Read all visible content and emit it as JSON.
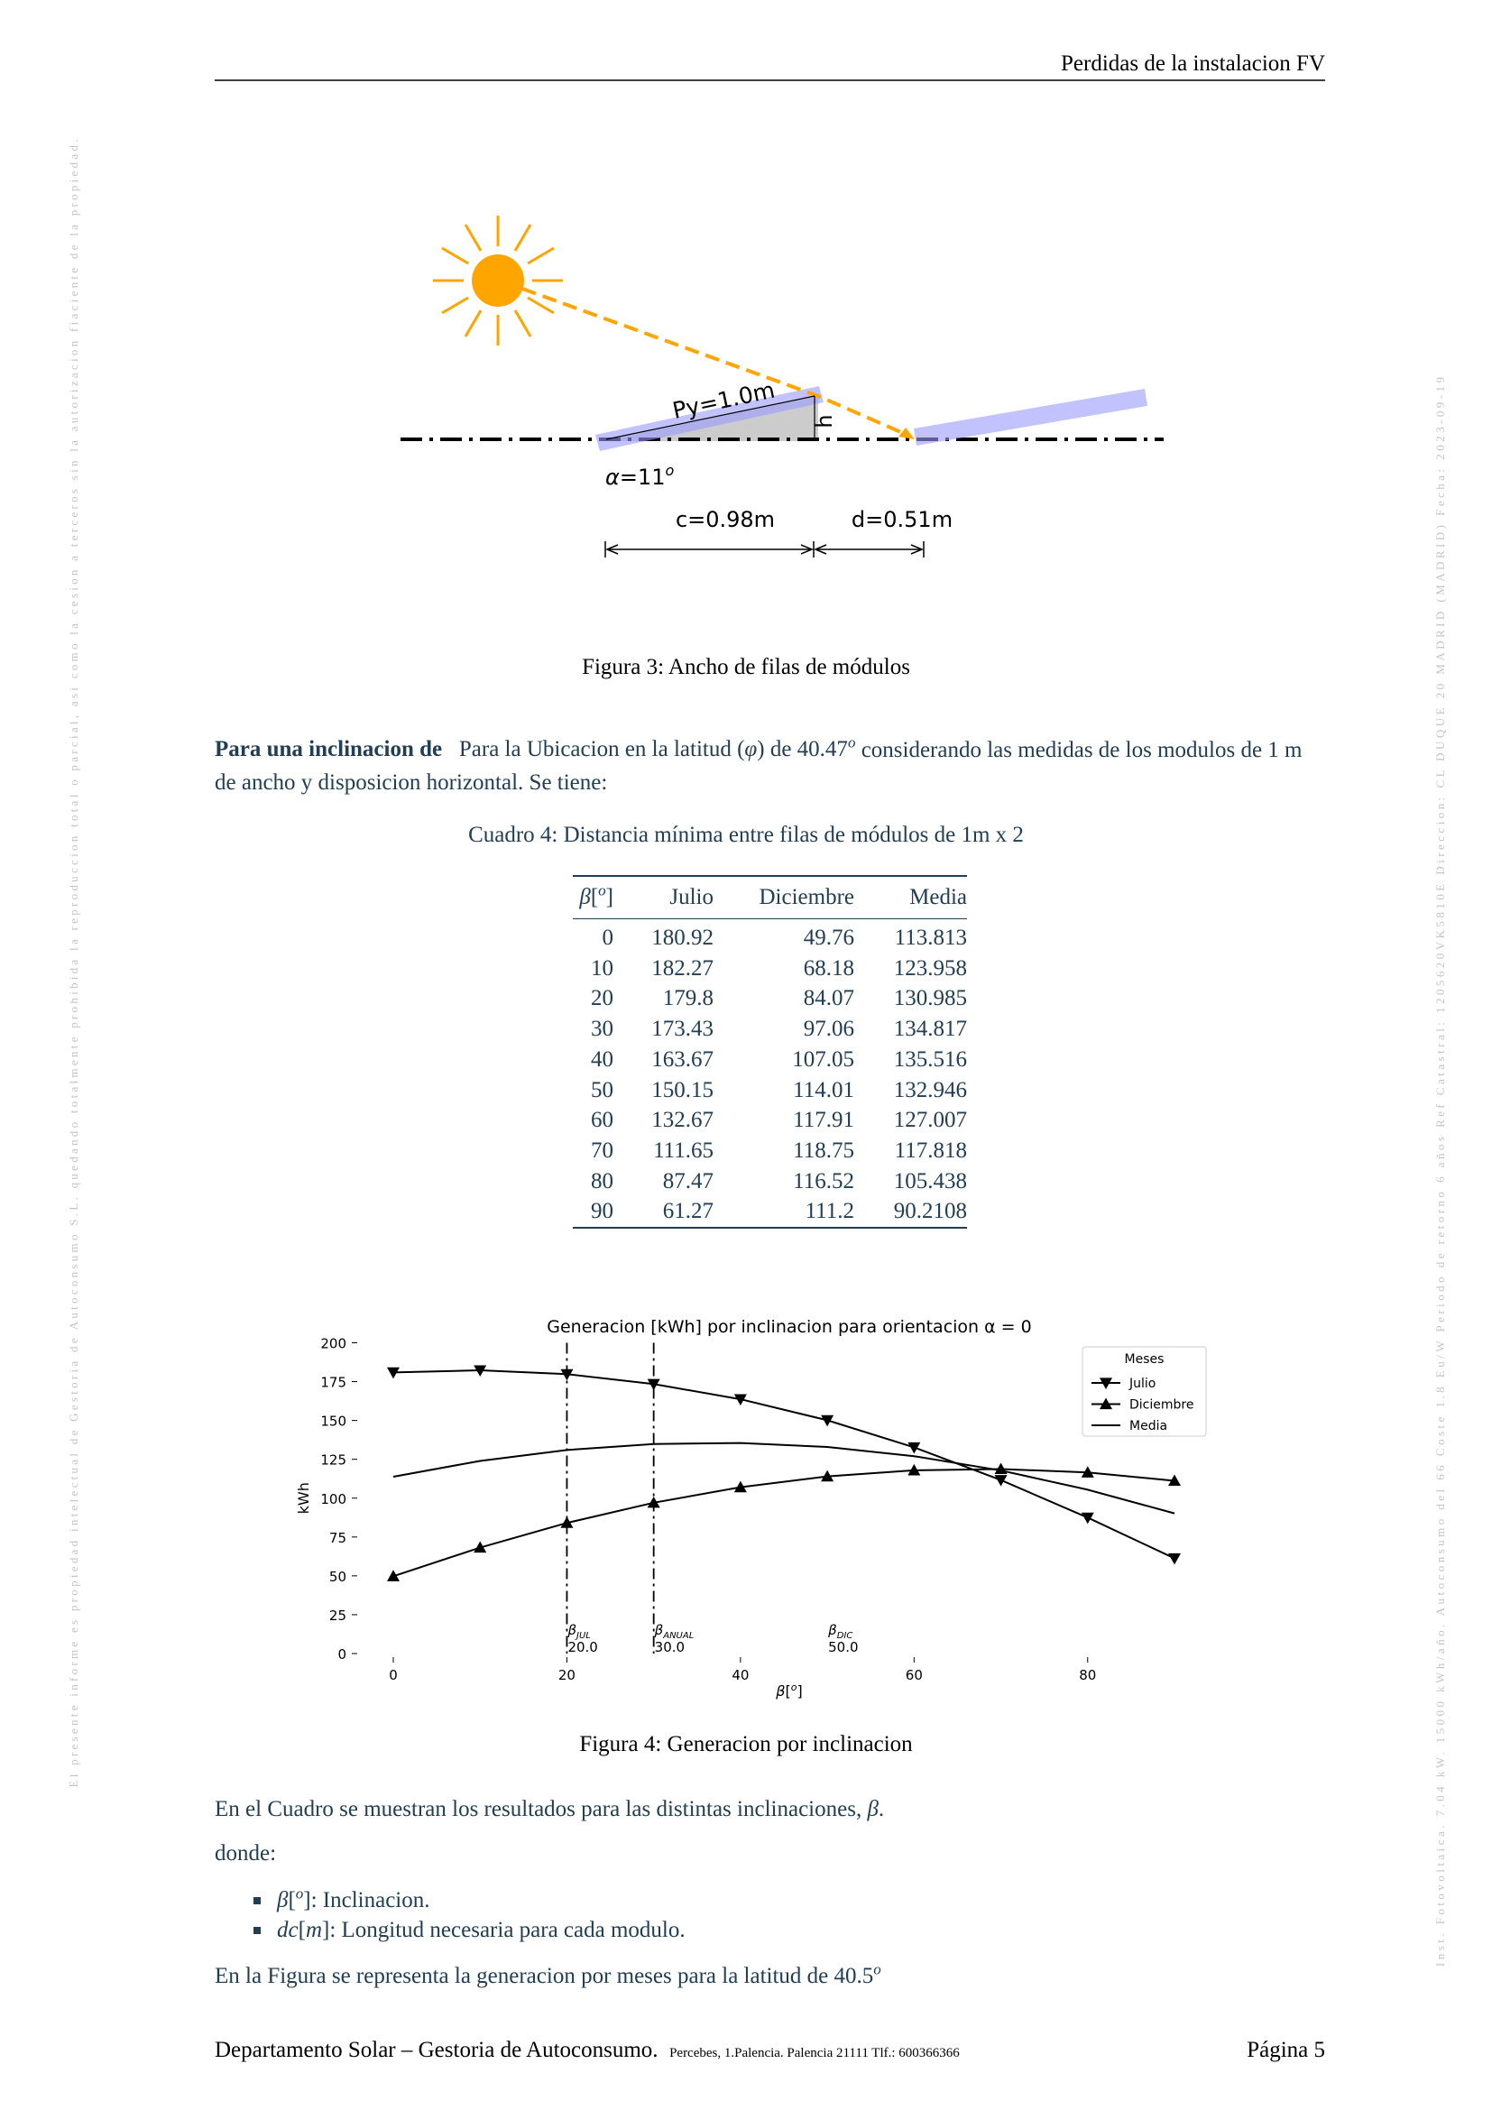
{
  "header": {
    "title": "Perdidas de la instalacion FV"
  },
  "watermark": {
    "left": "El presente informe es propiedad intelectual de Gestoria de Autoconsumo S.L. quedando totalmente prohibida la reproduccion total o parcial, asi como la cesion a terceros sin la autorizacion fiaciente de la propiedad.",
    "right": "Inst. Fotovoltaica. 7.04 kW. 15000 kWh/año. Autoconsumo del 66 Coste 1.8 Eu/W Periodo de retorno 6 años Ref Catastral: 1205620VK5810E Direccion: CL DUQUE 20 MADRID (MADRID) Fecha: 2023-09-19"
  },
  "figure3": {
    "labels": {
      "py": "Py=1.0m",
      "h": "h",
      "alpha": "α",
      "alpha_value": "=11",
      "alpha_unit": "o",
      "c": "c=0.98m",
      "d": "d=0.51m"
    },
    "caption": "Figura 3: Ancho de filas de módulos"
  },
  "paragraph": {
    "lead": "Para una inclinacion de",
    "t1": "Para la Ubicacion en la latitud (",
    "phi": "φ",
    "t2": ") de 40.47",
    "sup": "o",
    "t3": " considerando las medidas de los modulos de 1 m de ancho y disposicion horizontal. Se tiene:"
  },
  "table": {
    "caption": "Cuadro 4: Distancia mínima entre filas de módulos de 1m x 2",
    "header": [
      [
        "β",
        "[",
        "o",
        "]"
      ],
      "Julio",
      "Diciembre",
      "Media"
    ],
    "rows": [
      [
        0,
        180.92,
        49.76,
        113.813
      ],
      [
        10,
        182.27,
        68.18,
        123.958
      ],
      [
        20,
        179.8,
        84.07,
        130.985
      ],
      [
        30,
        173.43,
        97.06,
        134.817
      ],
      [
        40,
        163.67,
        107.05,
        135.516
      ],
      [
        50,
        150.15,
        114.01,
        132.946
      ],
      [
        60,
        132.67,
        117.91,
        127.007
      ],
      [
        70,
        111.65,
        118.75,
        117.818
      ],
      [
        80,
        87.47,
        116.52,
        105.438
      ],
      [
        90,
        61.27,
        111.2,
        90.2108
      ]
    ]
  },
  "chart_data": {
    "type": "line",
    "title": "Generacion [kWh] por inclinacion para orientacion α = 0",
    "xlabel": [
      "β",
      "[",
      "o",
      "]"
    ],
    "ylabel": "kWh",
    "x": [
      0,
      10,
      20,
      30,
      40,
      50,
      60,
      70,
      80,
      90
    ],
    "series": [
      {
        "name": "Julio",
        "color": "#000000",
        "marker": "v",
        "values": [
          180.92,
          182.27,
          179.8,
          173.43,
          163.67,
          150.15,
          132.67,
          111.65,
          87.47,
          61.27
        ]
      },
      {
        "name": "Diciembre",
        "color": "#000000",
        "marker": "^",
        "values": [
          49.76,
          68.18,
          84.07,
          97.06,
          107.05,
          114.01,
          117.91,
          118.75,
          116.52,
          111.2
        ]
      },
      {
        "name": "Media",
        "color": "#000000",
        "values": [
          113.813,
          123.958,
          130.985,
          134.817,
          135.516,
          132.946,
          127.007,
          117.818,
          105.438,
          90.2108
        ]
      }
    ],
    "xlim": [
      0,
      90
    ],
    "ylim": [
      0,
      200
    ],
    "xticks": [
      0,
      20,
      40,
      60,
      80
    ],
    "yticks": [
      0,
      25,
      50,
      75,
      100,
      125,
      150,
      175,
      200
    ],
    "legend": "upper right",
    "legend_title": "Meses",
    "annotations": [
      {
        "symbol": "β",
        "sub": "JUL",
        "x": 20,
        "label": "20.0",
        "line": true
      },
      {
        "symbol": "β",
        "sub": "ANUAL",
        "x": 30,
        "label": "30.0",
        "line": true
      },
      {
        "symbol": "β",
        "sub": "DIC",
        "x": 50,
        "label": "50.0",
        "line": false
      }
    ]
  },
  "figure4": {
    "caption": "Figura 4: Generacion por inclinacion"
  },
  "body": {
    "text1": [
      "En el Cuadro se muestran los resultados para las distintas inclinaciones, ",
      "β",
      "."
    ],
    "donde": "donde:",
    "list": [
      [
        "β",
        "[",
        "o",
        "]",
        ": Inclinacion."
      ],
      [
        "dc",
        "[",
        "m",
        "]",
        ": Longitud necesaria para cada modulo."
      ]
    ],
    "text2": [
      "En la Figura se representa la generacion por meses para la latitud de 40.5",
      "o"
    ]
  },
  "footer": {
    "left": "Departamento Solar – Gestoria de Autoconsumo.",
    "address": "Percebes, 1.Palencia. Palencia 21111 Tlf.: 600366366",
    "page": "Página 5"
  }
}
